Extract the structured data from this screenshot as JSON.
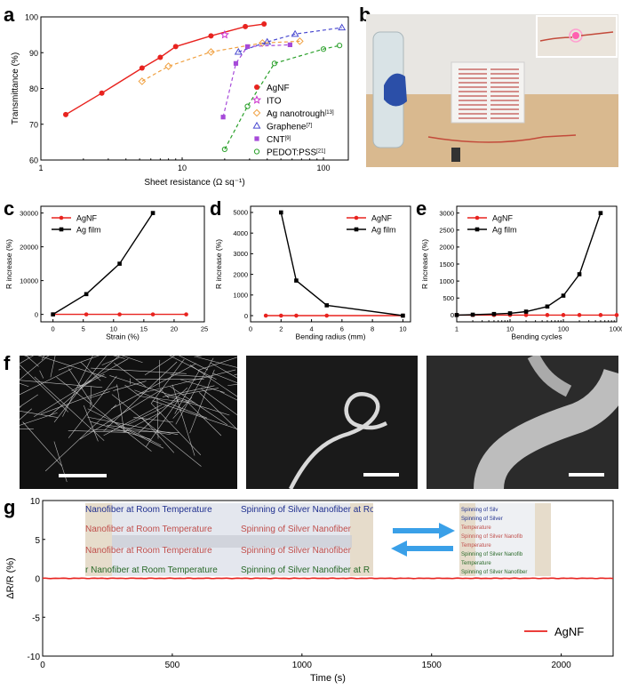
{
  "panels": {
    "a": "a",
    "b": "b",
    "c": "c",
    "d": "d",
    "e": "e",
    "f": "f",
    "g": "g"
  },
  "colors": {
    "agnf": "#e8231f",
    "ito": "#cc33cc",
    "ag_nanotrough": "#f0a040",
    "graphene": "#4a4ad0",
    "cnt": "#a64ad9",
    "pedot": "#2aa02a",
    "ag_film": "#000000"
  },
  "photo_b": {
    "sheet_text_color": "#c0504d",
    "description_icons": [
      "hand-glove",
      "led",
      "battery",
      "wire"
    ]
  },
  "photo_g": {
    "left_lines": [
      {
        "text": "Nanofiber at Room Temperature",
        "color": "#1f2f8f"
      },
      {
        "text": "Spinning of Silver Nanofiber at Ro",
        "color": "#1f2f8f"
      },
      {
        "text": "Nanofiber at Room Temperature",
        "color": "#c0504d"
      },
      {
        "text": "Spinning of Silver Nanofiber",
        "color": "#c0504d"
      },
      {
        "text": "Nanofiber at Room Temperature",
        "color": "#c0504d"
      },
      {
        "text": "Spinning of Silver Nanofiber",
        "color": "#c0504d"
      },
      {
        "text": "r Nanofiber at Room Temperature",
        "color": "#2a6a2a"
      },
      {
        "text": "Spinning of Silver Nanofiber at R",
        "color": "#2a6a2a"
      }
    ],
    "right_lines": [
      {
        "text": "Spinning of Silv",
        "color": "#1f2f8f"
      },
      {
        "text": "Spinning of Silver",
        "color": "#1f2f8f"
      },
      {
        "text": "Temperature",
        "color": "#c0504d"
      },
      {
        "text": "Spinning of Silver Nanofib",
        "color": "#c0504d"
      },
      {
        "text": "Temperature",
        "color": "#c0504d"
      },
      {
        "text": "Spinning of Silver Nanofib",
        "color": "#2a6a2a"
      },
      {
        "text": "Temperature",
        "color": "#2a6a2a"
      },
      {
        "text": "Spinning of Silver Nanofiber",
        "color": "#2a6a2a"
      }
    ]
  },
  "chart_data": [
    {
      "id": "a",
      "type": "scatter",
      "xlabel": "Sheet resistance (Ω sq⁻¹)",
      "ylabel": "Transmittance (%)",
      "xscale": "log",
      "xlim": [
        1,
        150
      ],
      "ylim": [
        60,
        100
      ],
      "yticks": [
        60,
        70,
        80,
        90,
        100
      ],
      "xticks": [
        1,
        10,
        100
      ],
      "xtick_labels": [
        "1",
        "10",
        "100"
      ],
      "legend_position": "right",
      "series": [
        {
          "name": "AgNF",
          "marker": "circle-filled",
          "color": "#e8231f",
          "fit": "solid",
          "x": [
            1.5,
            2.7,
            5.2,
            7.0,
            9.0,
            16.0,
            28.0,
            38.0
          ],
          "y": [
            72.7,
            78.7,
            85.7,
            88.7,
            91.7,
            94.7,
            97.3,
            98.0
          ]
        },
        {
          "name": "ITO",
          "marker": "star",
          "color": "#cc33cc",
          "fit": "none",
          "x": [
            20.0
          ],
          "y": [
            95.0
          ]
        },
        {
          "name": "Ag nanotrough",
          "name_suffix": "[13]",
          "marker": "diamond",
          "color": "#f0a040",
          "fit": "dashed",
          "x": [
            5.2,
            8.0,
            16.0,
            37.0,
            68.0
          ],
          "y": [
            82.0,
            86.2,
            90.2,
            92.7,
            93.2
          ]
        },
        {
          "name": "Graphene",
          "name_suffix": "[7]",
          "marker": "triangle",
          "color": "#4a4ad0",
          "fit": "dashed",
          "x": [
            25.0,
            40.0,
            63.0,
            135.0
          ],
          "y": [
            90.2,
            93.0,
            95.2,
            97.0
          ]
        },
        {
          "name": "CNT",
          "name_suffix": "[9]",
          "marker": "square",
          "color": "#a64ad9",
          "fit": "dashed",
          "x": [
            19.5,
            24.0,
            29.0,
            58.0
          ],
          "y": [
            72.0,
            87.0,
            91.7,
            92.2
          ]
        },
        {
          "name": "PEDOT:PSS",
          "name_suffix": "[21]",
          "marker": "circle-open",
          "color": "#2aa02a",
          "fit": "dashed",
          "x": [
            20.0,
            29.0,
            45.0,
            100.0,
            130.0
          ],
          "y": [
            63.0,
            75.0,
            87.0,
            91.0,
            92.0
          ]
        }
      ]
    },
    {
      "id": "c",
      "type": "line",
      "xlabel": "Strain (%)",
      "ylabel": "R increase (%)",
      "xlim": [
        -2,
        25
      ],
      "ylim": [
        -2200,
        32000
      ],
      "xticks": [
        0,
        5,
        10,
        15,
        20,
        25
      ],
      "yticks": [
        0,
        10000,
        20000,
        30000
      ],
      "legend_position": "top-left",
      "series": [
        {
          "name": "AgNF",
          "color": "#e8231f",
          "marker": "circle",
          "x": [
            0,
            5.5,
            11,
            16.5,
            22
          ],
          "y": [
            0,
            0,
            0,
            0,
            0
          ]
        },
        {
          "name": "Ag film",
          "color": "#000000",
          "marker": "square",
          "x": [
            0,
            5.5,
            11,
            16.5
          ],
          "y": [
            0,
            6000,
            15000,
            30000
          ]
        }
      ]
    },
    {
      "id": "d",
      "type": "line",
      "xlabel": "Bending radius (mm)",
      "ylabel": "R increase (%)",
      "xlim": [
        0,
        10.5
      ],
      "ylim": [
        -300,
        5300
      ],
      "xticks": [
        0,
        2,
        4,
        6,
        8,
        10
      ],
      "yticks": [
        0,
        1000,
        2000,
        3000,
        4000,
        5000
      ],
      "legend_position": "top-right",
      "series": [
        {
          "name": "AgNF",
          "color": "#e8231f",
          "marker": "circle",
          "x": [
            1,
            2,
            3,
            5,
            10
          ],
          "y": [
            0,
            0,
            0,
            0,
            0
          ]
        },
        {
          "name": "Ag film",
          "color": "#000000",
          "marker": "square",
          "x": [
            2,
            3,
            5,
            10
          ],
          "y": [
            5000,
            1700,
            500,
            0
          ]
        }
      ]
    },
    {
      "id": "e",
      "type": "line",
      "xlabel": "Bending cycles",
      "ylabel": "R increase (%)",
      "xscale": "log",
      "xlim": [
        1,
        1000
      ],
      "ylim": [
        -200,
        3200
      ],
      "xticks": [
        1,
        10,
        100,
        1000
      ],
      "xtick_labels": [
        "1",
        "10",
        "100",
        "1000"
      ],
      "yticks": [
        0,
        500,
        1000,
        1500,
        2000,
        2500,
        3000
      ],
      "legend_position": "top-left",
      "series": [
        {
          "name": "AgNF",
          "color": "#e8231f",
          "marker": "circle",
          "x": [
            1,
            2,
            5,
            10,
            20,
            50,
            100,
            200,
            500,
            1000
          ],
          "y": [
            0,
            0,
            0,
            0,
            0,
            0,
            0,
            0,
            0,
            0
          ]
        },
        {
          "name": "Ag film",
          "color": "#000000",
          "marker": "square",
          "x": [
            1,
            2,
            5,
            10,
            20,
            50,
            100,
            200,
            500
          ],
          "y": [
            0,
            10,
            30,
            50,
            100,
            250,
            570,
            1200,
            3000
          ]
        }
      ]
    },
    {
      "id": "g",
      "type": "line",
      "xlabel": "Time (s)",
      "ylabel": "ΔR/R (%)",
      "xlim": [
        0,
        2200
      ],
      "ylim": [
        -10,
        10
      ],
      "xticks": [
        0,
        500,
        1000,
        1500,
        2000
      ],
      "yticks": [
        -10,
        -5,
        0,
        5,
        10
      ],
      "legend_position": "bottom-right",
      "series": [
        {
          "name": "AgNF",
          "color": "#e8231f",
          "x": [
            0,
            2200
          ],
          "y": [
            0,
            0
          ]
        }
      ]
    }
  ]
}
